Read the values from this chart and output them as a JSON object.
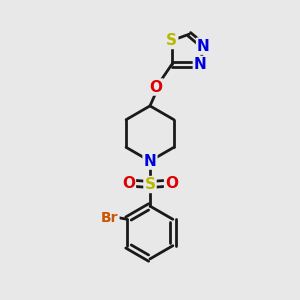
{
  "bg_color": "#e8e8e8",
  "bond_color": "#1a1a1a",
  "bond_width": 2.0,
  "atom_colors": {
    "S_thia": "#b8b800",
    "S_sulfonyl": "#b8b800",
    "N": "#0000dd",
    "O": "#dd0000",
    "Br": "#cc5500",
    "C": "#1a1a1a"
  },
  "font_size_atom": 11,
  "font_size_br": 10
}
